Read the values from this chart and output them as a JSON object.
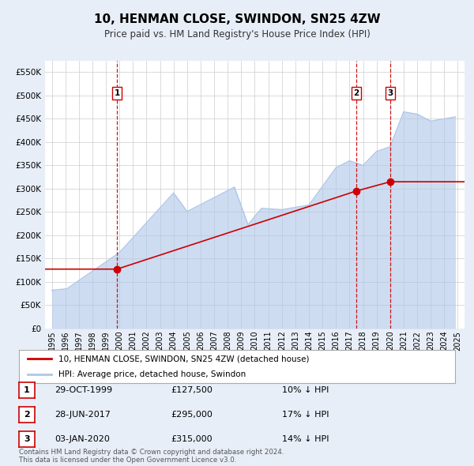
{
  "title": "10, HENMAN CLOSE, SWINDON, SN25 4ZW",
  "subtitle": "Price paid vs. HM Land Registry's House Price Index (HPI)",
  "legend_line1": "10, HENMAN CLOSE, SWINDON, SN25 4ZW (detached house)",
  "legend_line2": "HPI: Average price, detached house, Swindon",
  "transactions": [
    {
      "num": 1,
      "date": "29-OCT-1999",
      "date_val": 1999.82,
      "price": 127500,
      "pct": "10% ↓ HPI"
    },
    {
      "num": 2,
      "date": "28-JUN-2017",
      "date_val": 2017.49,
      "price": 295000,
      "pct": "17% ↓ HPI"
    },
    {
      "num": 3,
      "date": "03-JAN-2020",
      "date_val": 2020.01,
      "price": 315000,
      "pct": "14% ↓ HPI"
    }
  ],
  "footer": "Contains HM Land Registry data © Crown copyright and database right 2024.\nThis data is licensed under the Open Government Licence v3.0.",
  "hpi_color": "#aec6e8",
  "sale_color": "#cc0000",
  "vline_color": "#cc0000",
  "background_color": "#e8eef8",
  "plot_bg": "#ffffff",
  "ylim": [
    0,
    575000
  ],
  "xlim_start": 1994.5,
  "xlim_end": 2025.5,
  "yticks": [
    0,
    50000,
    100000,
    150000,
    200000,
    250000,
    300000,
    350000,
    400000,
    450000,
    500000,
    550000
  ],
  "xticks": [
    1995,
    1996,
    1997,
    1998,
    1999,
    2000,
    2001,
    2002,
    2003,
    2004,
    2005,
    2006,
    2007,
    2008,
    2009,
    2010,
    2011,
    2012,
    2013,
    2014,
    2015,
    2016,
    2017,
    2018,
    2019,
    2020,
    2021,
    2022,
    2023,
    2024,
    2025
  ],
  "sale_data": {
    "x": [
      1999.82,
      2017.49,
      2020.01
    ],
    "y": [
      127500,
      295000,
      315000
    ]
  }
}
